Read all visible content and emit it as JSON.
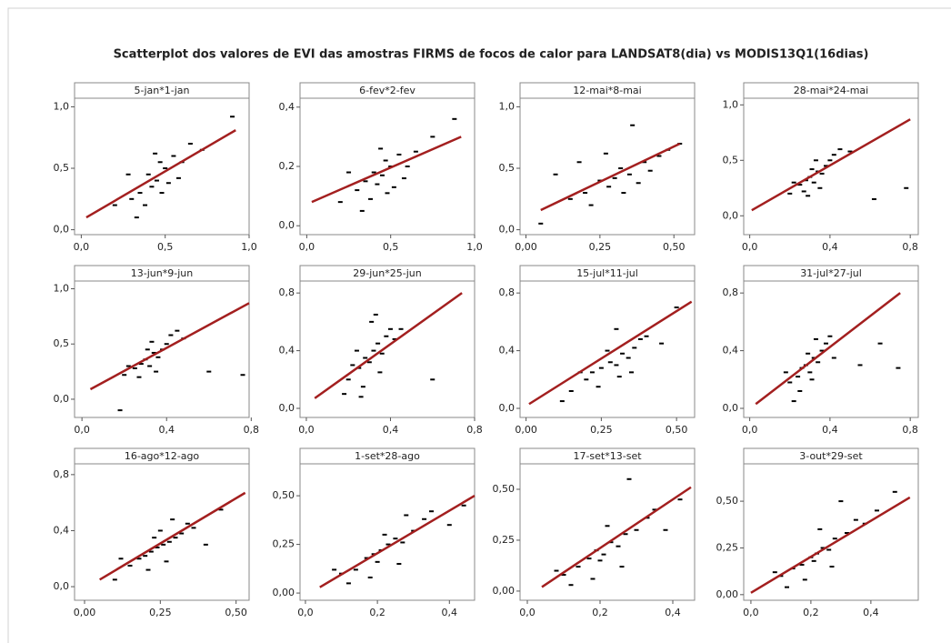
{
  "chart_data": {
    "type": "scatter",
    "title": "Scatterplot dos valores de EVI das amostras FIRMS de focos de calor  para LANDSAT8(dia) vs MODIS13Q1(16dias)",
    "point_color": "#000000",
    "fit_color": "#a31f1f",
    "panels": [
      {
        "title": "5-jan*1-jan",
        "xlim": [
          -0.04,
          1.0
        ],
        "ylim": [
          -0.04,
          1.07
        ],
        "xticks": [
          {
            "value": 0,
            "label": "0,0"
          },
          {
            "value": 0.5,
            "label": "0,5"
          },
          {
            "value": 1,
            "label": "1,0"
          }
        ],
        "yticks": [
          {
            "value": 0,
            "label": "0,0"
          },
          {
            "value": 0.5,
            "label": "0,5"
          },
          {
            "value": 1,
            "label": "1,0"
          }
        ],
        "x": [
          0.3,
          0.35,
          0.4,
          0.42,
          0.45,
          0.47,
          0.5,
          0.52,
          0.55,
          0.38,
          0.44,
          0.48,
          0.6,
          0.28,
          0.65,
          0.72,
          0.9,
          0.2,
          0.33,
          0.58
        ],
        "y": [
          0.25,
          0.3,
          0.45,
          0.35,
          0.4,
          0.55,
          0.5,
          0.38,
          0.6,
          0.2,
          0.62,
          0.3,
          0.55,
          0.45,
          0.7,
          0.65,
          0.92,
          0.2,
          0.1,
          0.42
        ],
        "fit_x": [
          0.03,
          0.92
        ],
        "fit_y": [
          0.1,
          0.81
        ]
      },
      {
        "title": "6-fev*2-fev",
        "xlim": [
          -0.04,
          1.0
        ],
        "ylim": [
          -0.03,
          0.43
        ],
        "xticks": [
          {
            "value": 0,
            "label": "0,0"
          },
          {
            "value": 0.5,
            "label": "0,5"
          },
          {
            "value": 1,
            "label": "1,0"
          }
        ],
        "yticks": [
          {
            "value": 0,
            "label": "0,0"
          },
          {
            "value": 0.2,
            "label": "0,2"
          },
          {
            "value": 0.4,
            "label": "0,4"
          }
        ],
        "x": [
          0.3,
          0.35,
          0.4,
          0.42,
          0.45,
          0.47,
          0.5,
          0.52,
          0.55,
          0.38,
          0.44,
          0.48,
          0.6,
          0.25,
          0.65,
          0.75,
          0.88,
          0.2,
          0.33,
          0.58
        ],
        "y": [
          0.12,
          0.15,
          0.18,
          0.14,
          0.17,
          0.22,
          0.2,
          0.13,
          0.24,
          0.09,
          0.26,
          0.11,
          0.2,
          0.18,
          0.25,
          0.3,
          0.36,
          0.08,
          0.05,
          0.16
        ],
        "fit_x": [
          0.03,
          0.92
        ],
        "fit_y": [
          0.08,
          0.3
        ]
      },
      {
        "title": "12-mai*8-mai",
        "xlim": [
          -0.02,
          0.57
        ],
        "ylim": [
          -0.04,
          1.07
        ],
        "xticks": [
          {
            "value": 0,
            "label": "0,00"
          },
          {
            "value": 0.25,
            "label": "0,25"
          },
          {
            "value": 0.5,
            "label": "0,50"
          }
        ],
        "yticks": [
          {
            "value": 0,
            "label": "0,0"
          },
          {
            "value": 0.5,
            "label": "0,5"
          },
          {
            "value": 1,
            "label": "1,0"
          }
        ],
        "x": [
          0.15,
          0.2,
          0.25,
          0.28,
          0.3,
          0.32,
          0.35,
          0.38,
          0.4,
          0.22,
          0.27,
          0.33,
          0.45,
          0.1,
          0.48,
          0.52,
          0.05,
          0.18,
          0.36,
          0.42
        ],
        "y": [
          0.25,
          0.3,
          0.4,
          0.35,
          0.42,
          0.5,
          0.45,
          0.38,
          0.55,
          0.2,
          0.62,
          0.3,
          0.6,
          0.45,
          0.65,
          0.7,
          0.05,
          0.55,
          0.85,
          0.48
        ],
        "fit_x": [
          0.05,
          0.52
        ],
        "fit_y": [
          0.16,
          0.7
        ]
      },
      {
        "title": "28-mai*24-mai",
        "xlim": [
          -0.03,
          0.84
        ],
        "ylim": [
          -0.17,
          1.06
        ],
        "xticks": [
          {
            "value": 0,
            "label": "0,0"
          },
          {
            "value": 0.4,
            "label": "0,4"
          },
          {
            "value": 0.8,
            "label": "0,8"
          }
        ],
        "yticks": [
          {
            "value": 0,
            "label": "0,0"
          },
          {
            "value": 0.5,
            "label": "0,5"
          },
          {
            "value": 1,
            "label": "1,0"
          }
        ],
        "x": [
          0.2,
          0.25,
          0.28,
          0.3,
          0.32,
          0.34,
          0.36,
          0.38,
          0.4,
          0.27,
          0.31,
          0.35,
          0.42,
          0.22,
          0.45,
          0.5,
          0.62,
          0.78,
          0.33,
          0.29
        ],
        "y": [
          0.2,
          0.28,
          0.32,
          0.35,
          0.3,
          0.4,
          0.38,
          0.45,
          0.5,
          0.22,
          0.42,
          0.25,
          0.55,
          0.3,
          0.6,
          0.58,
          0.15,
          0.25,
          0.5,
          0.18
        ],
        "fit_x": [
          0.01,
          0.8
        ],
        "fit_y": [
          0.05,
          0.87
        ]
      },
      {
        "title": "13-jun*9-jun",
        "xlim": [
          -0.035,
          0.79
        ],
        "ylim": [
          -0.165,
          1.07
        ],
        "xticks": [
          {
            "value": 0,
            "label": "0,0"
          },
          {
            "value": 0.4,
            "label": "0,4"
          },
          {
            "value": 0.8,
            "label": "0,8"
          }
        ],
        "yticks": [
          {
            "value": 0,
            "label": "0,0"
          },
          {
            "value": 0.5,
            "label": "0,5"
          },
          {
            "value": 1,
            "label": "1,0"
          }
        ],
        "x": [
          0.2,
          0.25,
          0.28,
          0.3,
          0.32,
          0.34,
          0.36,
          0.38,
          0.4,
          0.27,
          0.31,
          0.35,
          0.42,
          0.22,
          0.45,
          0.48,
          0.6,
          0.76,
          0.33,
          0.18
        ],
        "y": [
          0.22,
          0.28,
          0.32,
          0.36,
          0.3,
          0.42,
          0.38,
          0.45,
          0.5,
          0.2,
          0.45,
          0.25,
          0.58,
          0.3,
          0.62,
          0.55,
          0.25,
          0.22,
          0.52,
          -0.1
        ],
        "fit_x": [
          0.04,
          0.79
        ],
        "fit_y": [
          0.09,
          0.87
        ]
      },
      {
        "title": "29-jun*25-jun",
        "xlim": [
          -0.03,
          0.8
        ],
        "ylim": [
          -0.063,
          0.883
        ],
        "xticks": [
          {
            "value": 0,
            "label": "0,0"
          },
          {
            "value": 0.4,
            "label": "0,4"
          },
          {
            "value": 0.8,
            "label": "0,8"
          }
        ],
        "yticks": [
          {
            "value": 0,
            "label": "0,0"
          },
          {
            "value": 0.4,
            "label": "0,4"
          },
          {
            "value": 0.8,
            "label": "0,8"
          }
        ],
        "x": [
          0.2,
          0.25,
          0.28,
          0.3,
          0.32,
          0.34,
          0.36,
          0.38,
          0.4,
          0.27,
          0.31,
          0.35,
          0.42,
          0.22,
          0.26,
          0.45,
          0.6,
          0.24,
          0.33,
          0.18
        ],
        "y": [
          0.2,
          0.28,
          0.35,
          0.32,
          0.4,
          0.45,
          0.38,
          0.5,
          0.55,
          0.15,
          0.6,
          0.25,
          0.48,
          0.3,
          0.08,
          0.55,
          0.2,
          0.4,
          0.65,
          0.1
        ],
        "fit_x": [
          0.04,
          0.74
        ],
        "fit_y": [
          0.07,
          0.8
        ]
      },
      {
        "title": "15-jul*11-jul",
        "xlim": [
          -0.02,
          0.56
        ],
        "ylim": [
          -0.063,
          0.883
        ],
        "xticks": [
          {
            "value": 0,
            "label": "0,00"
          },
          {
            "value": 0.25,
            "label": "0,25"
          },
          {
            "value": 0.5,
            "label": "0,50"
          }
        ],
        "yticks": [
          {
            "value": 0,
            "label": "0,0"
          },
          {
            "value": 0.4,
            "label": "0,4"
          },
          {
            "value": 0.8,
            "label": "0,8"
          }
        ],
        "x": [
          0.15,
          0.2,
          0.22,
          0.25,
          0.28,
          0.3,
          0.32,
          0.34,
          0.36,
          0.24,
          0.27,
          0.31,
          0.38,
          0.18,
          0.4,
          0.45,
          0.5,
          0.12,
          0.3,
          0.35
        ],
        "y": [
          0.12,
          0.2,
          0.25,
          0.28,
          0.32,
          0.3,
          0.38,
          0.35,
          0.42,
          0.15,
          0.4,
          0.22,
          0.48,
          0.25,
          0.5,
          0.45,
          0.7,
          0.05,
          0.55,
          0.25
        ],
        "fit_x": [
          0.01,
          0.55
        ],
        "fit_y": [
          0.03,
          0.74
        ]
      },
      {
        "title": "31-jul*27-jul",
        "xlim": [
          -0.03,
          0.84
        ],
        "ylim": [
          -0.063,
          0.883
        ],
        "xticks": [
          {
            "value": 0,
            "label": "0,0"
          },
          {
            "value": 0.4,
            "label": "0,4"
          },
          {
            "value": 0.8,
            "label": "0,8"
          }
        ],
        "yticks": [
          {
            "value": 0,
            "label": "0,0"
          },
          {
            "value": 0.4,
            "label": "0,4"
          },
          {
            "value": 0.8,
            "label": "0,8"
          }
        ],
        "x": [
          0.2,
          0.24,
          0.26,
          0.28,
          0.3,
          0.32,
          0.34,
          0.36,
          0.38,
          0.25,
          0.29,
          0.31,
          0.4,
          0.18,
          0.42,
          0.55,
          0.65,
          0.74,
          0.33,
          0.22
        ],
        "y": [
          0.18,
          0.22,
          0.28,
          0.3,
          0.25,
          0.35,
          0.32,
          0.4,
          0.45,
          0.12,
          0.38,
          0.2,
          0.5,
          0.25,
          0.35,
          0.3,
          0.45,
          0.28,
          0.48,
          0.05
        ],
        "fit_x": [
          0.03,
          0.75
        ],
        "fit_y": [
          0.03,
          0.8
        ]
      },
      {
        "title": "16-ago*12-ago",
        "xlim": [
          -0.033,
          0.543
        ],
        "ylim": [
          -0.097,
          0.877
        ],
        "xticks": [
          {
            "value": 0,
            "label": "0,00"
          },
          {
            "value": 0.25,
            "label": "0,25"
          },
          {
            "value": 0.5,
            "label": "0,50"
          }
        ],
        "yticks": [
          {
            "value": 0,
            "label": "0,0"
          },
          {
            "value": 0.4,
            "label": "0,4"
          },
          {
            "value": 0.8,
            "label": "0,8"
          }
        ],
        "x": [
          0.15,
          0.18,
          0.2,
          0.22,
          0.24,
          0.26,
          0.28,
          0.3,
          0.32,
          0.21,
          0.25,
          0.27,
          0.34,
          0.12,
          0.36,
          0.4,
          0.45,
          0.1,
          0.29,
          0.23
        ],
        "y": [
          0.15,
          0.2,
          0.22,
          0.25,
          0.28,
          0.3,
          0.32,
          0.35,
          0.38,
          0.12,
          0.4,
          0.18,
          0.45,
          0.2,
          0.42,
          0.3,
          0.55,
          0.05,
          0.48,
          0.35
        ],
        "fit_x": [
          0.05,
          0.53
        ],
        "fit_y": [
          0.05,
          0.67
        ]
      },
      {
        "title": "1-set*28-ago",
        "xlim": [
          -0.015,
          0.47
        ],
        "ylim": [
          -0.037,
          0.664
        ],
        "xticks": [
          {
            "value": 0,
            "label": "0,0"
          },
          {
            "value": 0.2,
            "label": "0,2"
          },
          {
            "value": 0.4,
            "label": "0,4"
          }
        ],
        "yticks": [
          {
            "value": 0,
            "label": "0,00"
          },
          {
            "value": 0.25,
            "label": "0,25"
          },
          {
            "value": 0.5,
            "label": "0,50"
          }
        ],
        "x": [
          0.1,
          0.14,
          0.17,
          0.19,
          0.21,
          0.23,
          0.25,
          0.27,
          0.3,
          0.18,
          0.22,
          0.26,
          0.33,
          0.08,
          0.35,
          0.4,
          0.44,
          0.12,
          0.28,
          0.2
        ],
        "y": [
          0.1,
          0.12,
          0.18,
          0.2,
          0.22,
          0.25,
          0.28,
          0.26,
          0.32,
          0.08,
          0.3,
          0.15,
          0.38,
          0.12,
          0.42,
          0.35,
          0.45,
          0.05,
          0.4,
          0.16
        ],
        "fit_x": [
          0.04,
          0.47
        ],
        "fit_y": [
          0.03,
          0.5
        ]
      },
      {
        "title": "17-set*13-set",
        "xlim": [
          -0.02,
          0.46
        ],
        "ylim": [
          -0.045,
          0.625
        ],
        "xticks": [
          {
            "value": 0,
            "label": "0,0"
          },
          {
            "value": 0.2,
            "label": "0,2"
          },
          {
            "value": 0.4,
            "label": "0,4"
          }
        ],
        "yticks": [
          {
            "value": 0,
            "label": "0,00"
          },
          {
            "value": 0.25,
            "label": "0,25"
          },
          {
            "value": 0.5,
            "label": "0,50"
          }
        ],
        "x": [
          0.1,
          0.14,
          0.17,
          0.19,
          0.21,
          0.23,
          0.25,
          0.27,
          0.3,
          0.18,
          0.22,
          0.26,
          0.33,
          0.08,
          0.35,
          0.38,
          0.42,
          0.12,
          0.28,
          0.2
        ],
        "y": [
          0.08,
          0.12,
          0.16,
          0.2,
          0.18,
          0.24,
          0.22,
          0.28,
          0.3,
          0.06,
          0.32,
          0.12,
          0.36,
          0.1,
          0.4,
          0.3,
          0.45,
          0.03,
          0.55,
          0.15
        ],
        "fit_x": [
          0.04,
          0.45
        ],
        "fit_y": [
          0.02,
          0.51
        ]
      },
      {
        "title": "3-out*29-set",
        "xlim": [
          -0.024,
          0.558
        ],
        "ylim": [
          -0.03,
          0.7
        ],
        "xticks": [
          {
            "value": 0,
            "label": "0,0"
          },
          {
            "value": 0.2,
            "label": "0,2"
          },
          {
            "value": 0.4,
            "label": "0,4"
          }
        ],
        "yticks": [
          {
            "value": 0,
            "label": "0,00"
          },
          {
            "value": 0.25,
            "label": "0,25"
          },
          {
            "value": 0.5,
            "label": "0,50"
          }
        ],
        "x": [
          0.1,
          0.14,
          0.17,
          0.2,
          0.22,
          0.24,
          0.26,
          0.28,
          0.32,
          0.18,
          0.23,
          0.27,
          0.35,
          0.08,
          0.38,
          0.42,
          0.48,
          0.12,
          0.3,
          0.21
        ],
        "y": [
          0.1,
          0.14,
          0.16,
          0.2,
          0.22,
          0.25,
          0.24,
          0.3,
          0.33,
          0.08,
          0.35,
          0.15,
          0.4,
          0.12,
          0.38,
          0.45,
          0.55,
          0.04,
          0.5,
          0.18
        ],
        "fit_x": [
          0.0,
          0.53
        ],
        "fit_y": [
          0.01,
          0.52
        ]
      }
    ]
  }
}
